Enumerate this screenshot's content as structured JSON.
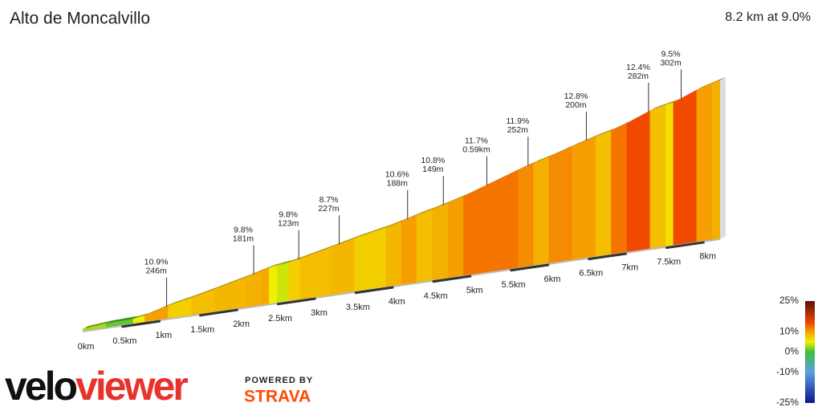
{
  "chart_data": {
    "type": "profile",
    "title": "Alto de Moncalvillo",
    "subtitle": "8.2 km at 9.0%",
    "xlim": [
      0,
      8.2
    ],
    "x": [
      0,
      0.3,
      0.65,
      0.8,
      1.1,
      1.4,
      1.7,
      2.1,
      2.3,
      2.4,
      2.5,
      2.65,
      2.8,
      3.2,
      3.5,
      3.9,
      4.1,
      4.3,
      4.5,
      4.7,
      4.9,
      5.6,
      5.8,
      6.0,
      6.3,
      6.6,
      6.8,
      7.0,
      7.3,
      7.5,
      7.6,
      7.9,
      8.1
    ],
    "values": [
      3,
      1,
      5,
      10,
      7,
      8,
      8.5,
      9,
      9.5,
      5,
      4,
      7,
      8,
      8.5,
      7,
      8.5,
      10,
      8,
      9,
      10,
      12,
      11,
      9,
      11,
      10,
      8,
      12,
      14,
      8,
      6,
      14,
      10,
      9
    ],
    "xticks": [
      {
        "value": 0,
        "label": "0km"
      },
      {
        "value": 0.5,
        "label": "0.5km"
      },
      {
        "value": 1,
        "label": "1km"
      },
      {
        "value": 1.5,
        "label": "1.5km"
      },
      {
        "value": 2,
        "label": "2km"
      },
      {
        "value": 2.5,
        "label": "2.5km"
      },
      {
        "value": 3,
        "label": "3km"
      },
      {
        "value": 3.5,
        "label": "3.5km"
      },
      {
        "value": 4,
        "label": "4km"
      },
      {
        "value": 4.5,
        "label": "4.5km"
      },
      {
        "value": 5,
        "label": "5km"
      },
      {
        "value": 5.5,
        "label": "5.5km"
      },
      {
        "value": 6,
        "label": "6km"
      },
      {
        "value": 6.5,
        "label": "6.5km"
      },
      {
        "value": 7,
        "label": "7km"
      },
      {
        "value": 7.5,
        "label": "7.5km"
      },
      {
        "value": 8,
        "label": "8km"
      }
    ],
    "annotations": [
      {
        "x": 1.08,
        "grade": "10.9%",
        "length": "246m"
      },
      {
        "x": 2.2,
        "grade": "9.8%",
        "length": "181m"
      },
      {
        "x": 2.78,
        "grade": "9.8%",
        "length": "123m"
      },
      {
        "x": 3.3,
        "grade": "8.7%",
        "length": "227m"
      },
      {
        "x": 4.18,
        "grade": "10.6%",
        "length": "188m"
      },
      {
        "x": 4.64,
        "grade": "10.8%",
        "length": "149m"
      },
      {
        "x": 5.2,
        "grade": "11.7%",
        "length": "0.59km"
      },
      {
        "x": 5.73,
        "grade": "11.9%",
        "length": "252m"
      },
      {
        "x": 6.48,
        "grade": "12.8%",
        "length": "200m"
      },
      {
        "x": 7.28,
        "grade": "12.4%",
        "length": "282m"
      },
      {
        "x": 7.7,
        "grade": "9.5%",
        "length": "302m"
      }
    ],
    "colorbar_ticks": [
      {
        "value": 25,
        "label": "25%"
      },
      {
        "value": 10,
        "label": "10%"
      },
      {
        "value": 0,
        "label": "0%"
      },
      {
        "value": -10,
        "label": "-10%"
      },
      {
        "value": -25,
        "label": "-25%"
      }
    ],
    "colorscale": [
      {
        "value": -25,
        "color": "#0a1590"
      },
      {
        "value": -10,
        "color": "#5aa0e0"
      },
      {
        "value": 0,
        "color": "#3cbf3c"
      },
      {
        "value": 5,
        "color": "#f2ee00"
      },
      {
        "value": 10,
        "color": "#f5a000"
      },
      {
        "value": 14,
        "color": "#f04a00"
      },
      {
        "value": 25,
        "color": "#5a1008"
      }
    ]
  },
  "brand": {
    "velo": "velo",
    "viewer": "viewer",
    "powered": "POWERED BY",
    "strava": "STRAVA"
  }
}
